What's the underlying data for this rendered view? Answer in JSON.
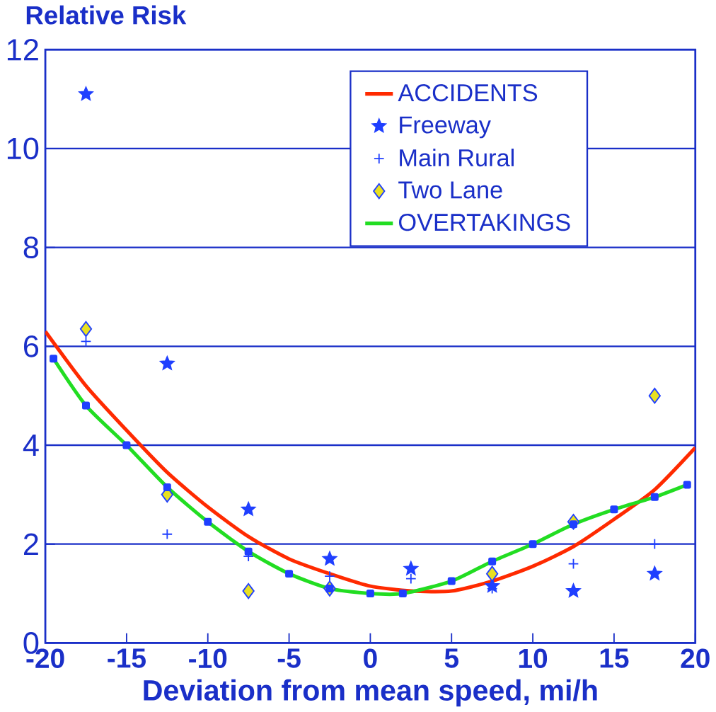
{
  "chart_data": {
    "type": "scatter",
    "ylabel": "Relative Risk",
    "xlabel": "Deviation from mean speed, mi/h",
    "xlim": [
      -20,
      20
    ],
    "xticks": [
      -20,
      -15,
      -10,
      -5,
      0,
      5,
      10,
      15,
      20
    ],
    "ylim": [
      0,
      12
    ],
    "yticks": [
      0,
      2,
      4,
      6,
      8,
      10,
      12
    ],
    "grid": "y",
    "legend": "top right",
    "series": [
      {
        "name": "ACCIDENTS",
        "type": "line",
        "color": "#ff2a00",
        "marker": "none",
        "x": [
          -20,
          -17.5,
          -15,
          -12.5,
          -10,
          -7.5,
          -5,
          -2.5,
          0,
          2.5,
          5,
          7.5,
          10,
          12.5,
          15,
          17.5,
          20
        ],
        "values": [
          6.3,
          5.2,
          4.3,
          3.45,
          2.75,
          2.15,
          1.7,
          1.4,
          1.15,
          1.05,
          1.05,
          1.25,
          1.55,
          1.95,
          2.5,
          3.1,
          3.95
        ]
      },
      {
        "name": "Freeway",
        "color": "#1f3fff",
        "marker": "star",
        "x": [
          -17.5,
          -12.5,
          -7.5,
          -2.5,
          2.5,
          7.5,
          12.5,
          17.5
        ],
        "values": [
          11.1,
          5.65,
          2.7,
          1.7,
          1.5,
          1.15,
          1.05,
          1.4
        ]
      },
      {
        "name": "Main Rural",
        "color": "#1f3fff",
        "marker": "cross",
        "x": [
          -17.5,
          -12.5,
          -7.5,
          -2.5,
          2.5,
          7.5,
          12.5,
          17.5
        ],
        "values": [
          6.1,
          2.2,
          1.75,
          1.35,
          1.3,
          1.1,
          1.6,
          2.0
        ]
      },
      {
        "name": "Two Lane",
        "color": "#e8e020",
        "marker": "diamond",
        "x": [
          -17.5,
          -12.5,
          -7.5,
          -2.5,
          7.5,
          12.5,
          17.5
        ],
        "values": [
          6.35,
          3.0,
          1.05,
          1.1,
          1.4,
          2.45,
          5.0
        ]
      },
      {
        "name": "OVERTAKINGS",
        "type": "line",
        "color": "#22dd22",
        "marker": "square",
        "x": [
          -19.5,
          -17.5,
          -15,
          -12.5,
          -10,
          -7.5,
          -5,
          -2.5,
          0,
          2,
          5,
          7.5,
          10,
          12.5,
          15,
          17.5,
          19.5
        ],
        "values": [
          5.75,
          4.8,
          4.0,
          3.15,
          2.45,
          1.85,
          1.4,
          1.1,
          1.0,
          1.0,
          1.25,
          1.65,
          2.0,
          2.4,
          2.7,
          2.95,
          3.2
        ]
      }
    ]
  }
}
